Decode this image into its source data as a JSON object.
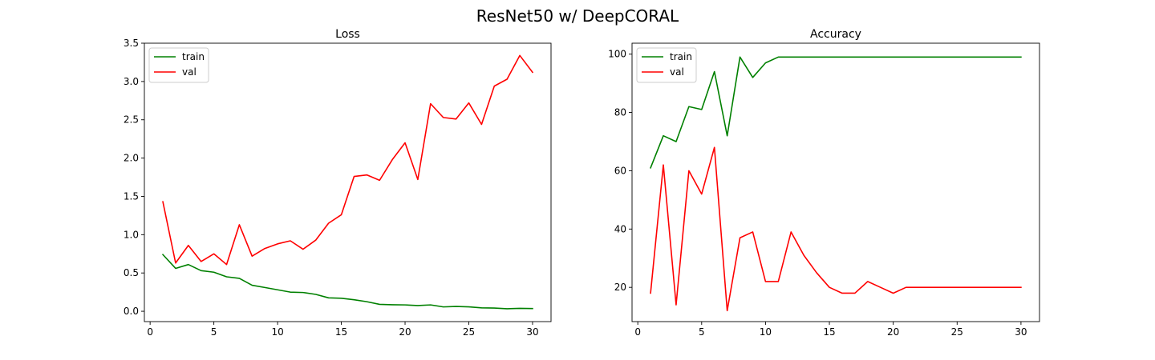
{
  "figure": {
    "suptitle": "ResNet50 w/ DeepCORAL"
  },
  "chart_data": [
    {
      "type": "line",
      "title": "Loss",
      "xlabel": "",
      "ylabel": "",
      "xlim": [
        -0.45,
        31.45
      ],
      "ylim": [
        -0.135,
        3.5
      ],
      "xticks": [
        0,
        5,
        10,
        15,
        20,
        25,
        30
      ],
      "xtick_labels": [
        "0",
        "5",
        "10",
        "15",
        "20",
        "25",
        "30"
      ],
      "yticks": [
        0,
        0.5,
        1.0,
        1.5,
        2.0,
        2.5,
        3.0,
        3.5
      ],
      "ytick_labels": [
        "0.0",
        "0.5",
        "1.0",
        "1.5",
        "2.0",
        "2.5",
        "3.0",
        "3.5"
      ],
      "grid": false,
      "legend": "upper-left",
      "x": [
        1,
        2,
        3,
        4,
        5,
        6,
        7,
        8,
        9,
        10,
        11,
        12,
        13,
        14,
        15,
        16,
        17,
        18,
        19,
        20,
        21,
        22,
        23,
        24,
        25,
        26,
        27,
        28,
        29,
        30
      ],
      "series": [
        {
          "name": "train",
          "color": "#008000",
          "values": [
            0.74,
            0.56,
            0.61,
            0.53,
            0.51,
            0.45,
            0.43,
            0.34,
            0.31,
            0.28,
            0.25,
            0.245,
            0.22,
            0.175,
            0.17,
            0.15,
            0.125,
            0.09,
            0.085,
            0.083,
            0.075,
            0.083,
            0.057,
            0.063,
            0.058,
            0.045,
            0.042,
            0.033,
            0.038,
            0.036
          ]
        },
        {
          "name": "val",
          "color": "#ff0000",
          "values": [
            1.43,
            0.63,
            0.86,
            0.65,
            0.75,
            0.61,
            1.13,
            0.72,
            0.82,
            0.88,
            0.92,
            0.81,
            0.93,
            1.15,
            1.26,
            1.76,
            1.78,
            1.71,
            1.98,
            2.2,
            1.72,
            2.71,
            2.53,
            2.51,
            2.72,
            2.44,
            2.94,
            3.03,
            3.34,
            3.12
          ]
        }
      ]
    },
    {
      "type": "line",
      "title": "Accuracy",
      "xlabel": "",
      "ylabel": "",
      "xlim": [
        -0.45,
        31.45
      ],
      "ylim": [
        8.25,
        103.75
      ],
      "xticks": [
        0,
        5,
        10,
        15,
        20,
        25,
        30
      ],
      "xtick_labels": [
        "0",
        "5",
        "10",
        "15",
        "20",
        "25",
        "30"
      ],
      "yticks": [
        20,
        40,
        60,
        80,
        100
      ],
      "ytick_labels": [
        "20",
        "40",
        "60",
        "80",
        "100"
      ],
      "grid": false,
      "legend": "upper-left",
      "x": [
        1,
        2,
        3,
        4,
        5,
        6,
        7,
        8,
        9,
        10,
        11,
        12,
        13,
        14,
        15,
        16,
        17,
        18,
        19,
        20,
        21,
        22,
        23,
        24,
        25,
        26,
        27,
        28,
        29,
        30
      ],
      "series": [
        {
          "name": "train",
          "color": "#008000",
          "values": [
            61,
            72,
            70,
            82,
            81,
            94,
            72,
            99,
            92,
            97,
            99,
            99,
            99,
            99,
            99,
            99,
            99,
            99,
            99,
            99,
            99,
            99,
            99,
            99,
            99,
            99,
            99,
            99,
            99,
            99
          ]
        },
        {
          "name": "val",
          "color": "#ff0000",
          "values": [
            18,
            62,
            14,
            60,
            52,
            68,
            12,
            37,
            39,
            22,
            22,
            39,
            31,
            25,
            20,
            18,
            18,
            22,
            20,
            18,
            20,
            20,
            20,
            20,
            20,
            20,
            20,
            20,
            20,
            20
          ]
        }
      ]
    }
  ]
}
